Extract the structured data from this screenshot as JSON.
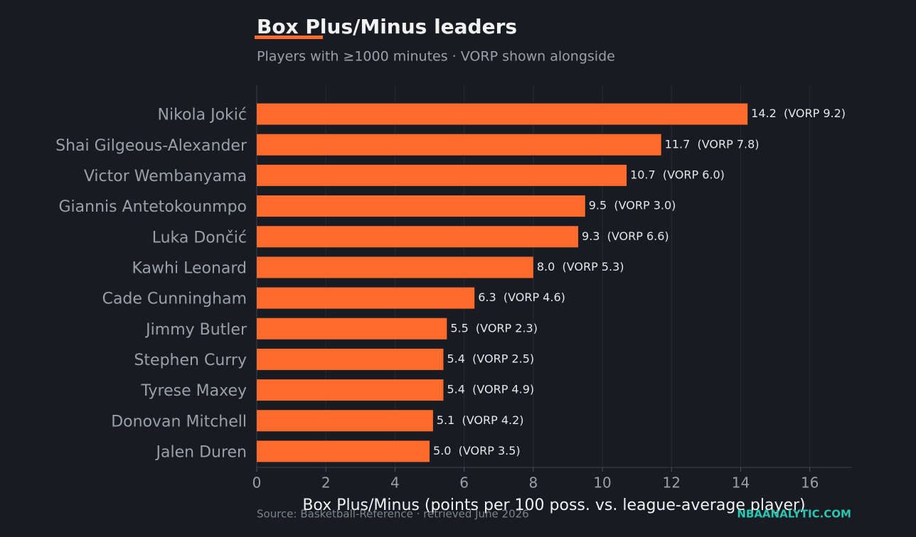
{
  "chart_data": {
    "type": "hbar",
    "title": "Box Plus/Minus leaders",
    "subtitle": "Players with ≥1000 minutes · VORP shown alongside",
    "x_label": "Box Plus/Minus (points per 100 poss. vs. league-average player)",
    "source": "Source: Basketball-Reference · retrieved June 2026",
    "brand": "NBAANALYTIC.COM",
    "categories": [
      "Nikola Jokić",
      "Shai Gilgeous-Alexander",
      "Victor Wembanyama",
      "Giannis Antetokounmpo",
      "Luka Dončić",
      "Kawhi Leonard",
      "Cade Cunningham",
      "Jimmy Butler",
      "Stephen Curry",
      "Tyrese Maxey",
      "Donovan Mitchell",
      "Jalen Duren"
    ],
    "values": [
      14.2,
      11.7,
      10.7,
      9.5,
      9.3,
      8.0,
      6.3,
      5.5,
      5.4,
      5.4,
      5.1,
      5.0
    ],
    "value_labels": [
      "14.2  (VORP 9.2)",
      "11.7  (VORP 7.8)",
      "10.7  (VORP 6.0)",
      "9.5  (VORP 3.0)",
      "9.3  (VORP 6.6)",
      "8.0  (VORP 5.3)",
      "6.3  (VORP 4.6)",
      "5.5  (VORP 2.3)",
      "5.4  (VORP 2.5)",
      "5.4  (VORP 4.9)",
      "5.1  (VORP 4.2)",
      "5.0  (VORP 3.5)"
    ],
    "color": "#ff6b2c",
    "xlim": [
      0,
      17.2
    ],
    "xticks": [
      0,
      2,
      4,
      6,
      8,
      10,
      12,
      14,
      16
    ],
    "grid": true
  }
}
